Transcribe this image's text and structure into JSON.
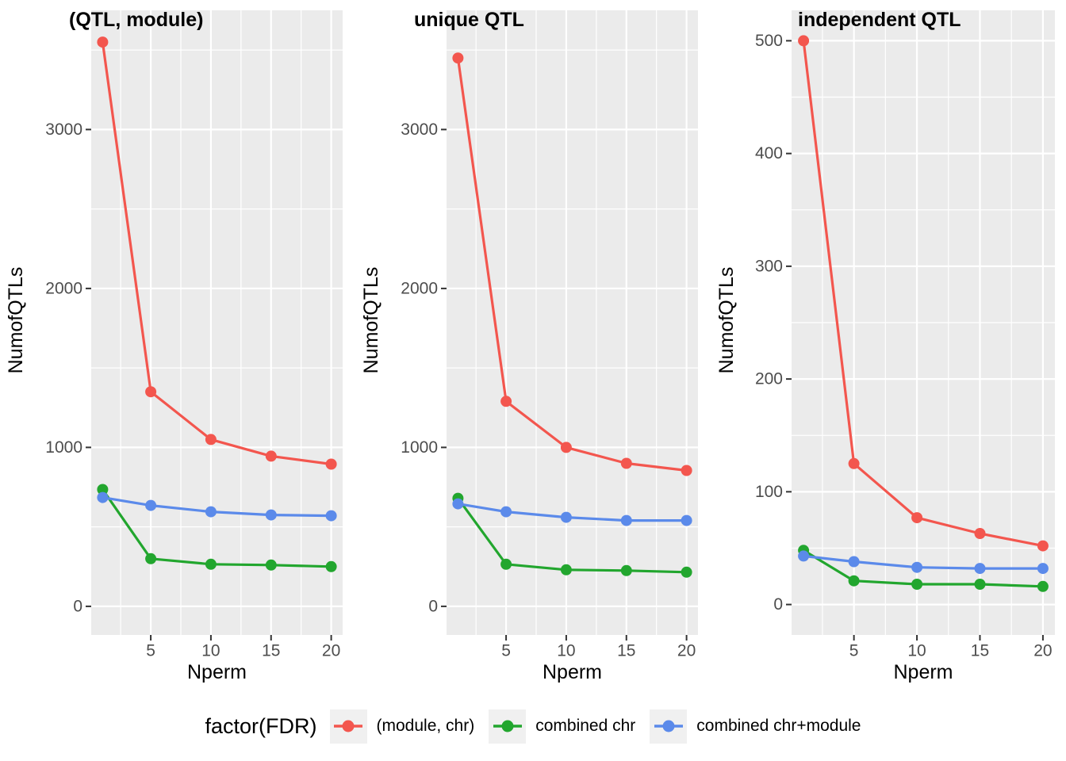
{
  "figure": {
    "y_axis_label": "NumofQTLs",
    "x_axis_label": "Nperm",
    "legend": {
      "title": "factor(FDR)",
      "entries": [
        {
          "label": "(module, chr)",
          "color": "#F3564E"
        },
        {
          "label": "combined chr",
          "color": "#22A62E"
        },
        {
          "label": "combined chr+module",
          "color": "#5B8AEA"
        }
      ]
    },
    "colors": {
      "panel_bg": "#EBEBEB",
      "grid": "#FFFFFF",
      "tick_mark": "#333333",
      "tick_label": "#4D4D4D",
      "axis_title": "#000000",
      "panel_title": "#000000",
      "legend_key_bg": "#F0F0F0"
    }
  },
  "chart_data": [
    {
      "type": "line",
      "title": "(QTL, module)",
      "xlabel": "Nperm",
      "ylabel": "NumofQTLs",
      "x": [
        1,
        5,
        10,
        15,
        20
      ],
      "xticks": [
        5,
        10,
        15,
        20
      ],
      "xlim": [
        0.05,
        20.95
      ],
      "yticks": [
        0,
        1000,
        2000,
        3000
      ],
      "ylim": [
        -180,
        3750
      ],
      "grid": true,
      "legend_position": "bottom",
      "series": [
        {
          "name": "(module, chr)",
          "color": "#F3564E",
          "values": [
            3550,
            1350,
            1050,
            945,
            895
          ]
        },
        {
          "name": "combined chr",
          "color": "#22A62E",
          "values": [
            735,
            300,
            265,
            260,
            250
          ]
        },
        {
          "name": "combined chr+module",
          "color": "#5B8AEA",
          "values": [
            685,
            635,
            595,
            575,
            570
          ]
        }
      ]
    },
    {
      "type": "line",
      "title": "unique QTL",
      "xlabel": "Nperm",
      "ylabel": "NumofQTLs",
      "x": [
        1,
        5,
        10,
        15,
        20
      ],
      "xticks": [
        5,
        10,
        15,
        20
      ],
      "xlim": [
        0.05,
        20.95
      ],
      "yticks": [
        0,
        1000,
        2000,
        3000
      ],
      "ylim": [
        -180,
        3750
      ],
      "grid": true,
      "legend_position": "bottom",
      "series": [
        {
          "name": "(module, chr)",
          "color": "#F3564E",
          "values": [
            3450,
            1290,
            1000,
            900,
            855
          ]
        },
        {
          "name": "combined chr",
          "color": "#22A62E",
          "values": [
            680,
            265,
            230,
            225,
            215
          ]
        },
        {
          "name": "combined chr+module",
          "color": "#5B8AEA",
          "values": [
            645,
            595,
            560,
            540,
            540
          ]
        }
      ]
    },
    {
      "type": "line",
      "title": "independent QTL",
      "xlabel": "Nperm",
      "ylabel": "NumofQTLs",
      "x": [
        1,
        5,
        10,
        15,
        20
      ],
      "xticks": [
        5,
        10,
        15,
        20
      ],
      "xlim": [
        0.05,
        20.95
      ],
      "yticks": [
        0,
        100,
        200,
        300,
        400,
        500
      ],
      "ylim": [
        -27,
        527
      ],
      "grid": true,
      "legend_position": "bottom",
      "series": [
        {
          "name": "(module, chr)",
          "color": "#F3564E",
          "values": [
            500,
            125,
            77,
            63,
            52
          ]
        },
        {
          "name": "combined chr",
          "color": "#22A62E",
          "values": [
            48,
            21,
            18,
            18,
            16
          ]
        },
        {
          "name": "combined chr+module",
          "color": "#5B8AEA",
          "values": [
            43,
            38,
            33,
            32,
            32
          ]
        }
      ]
    }
  ]
}
